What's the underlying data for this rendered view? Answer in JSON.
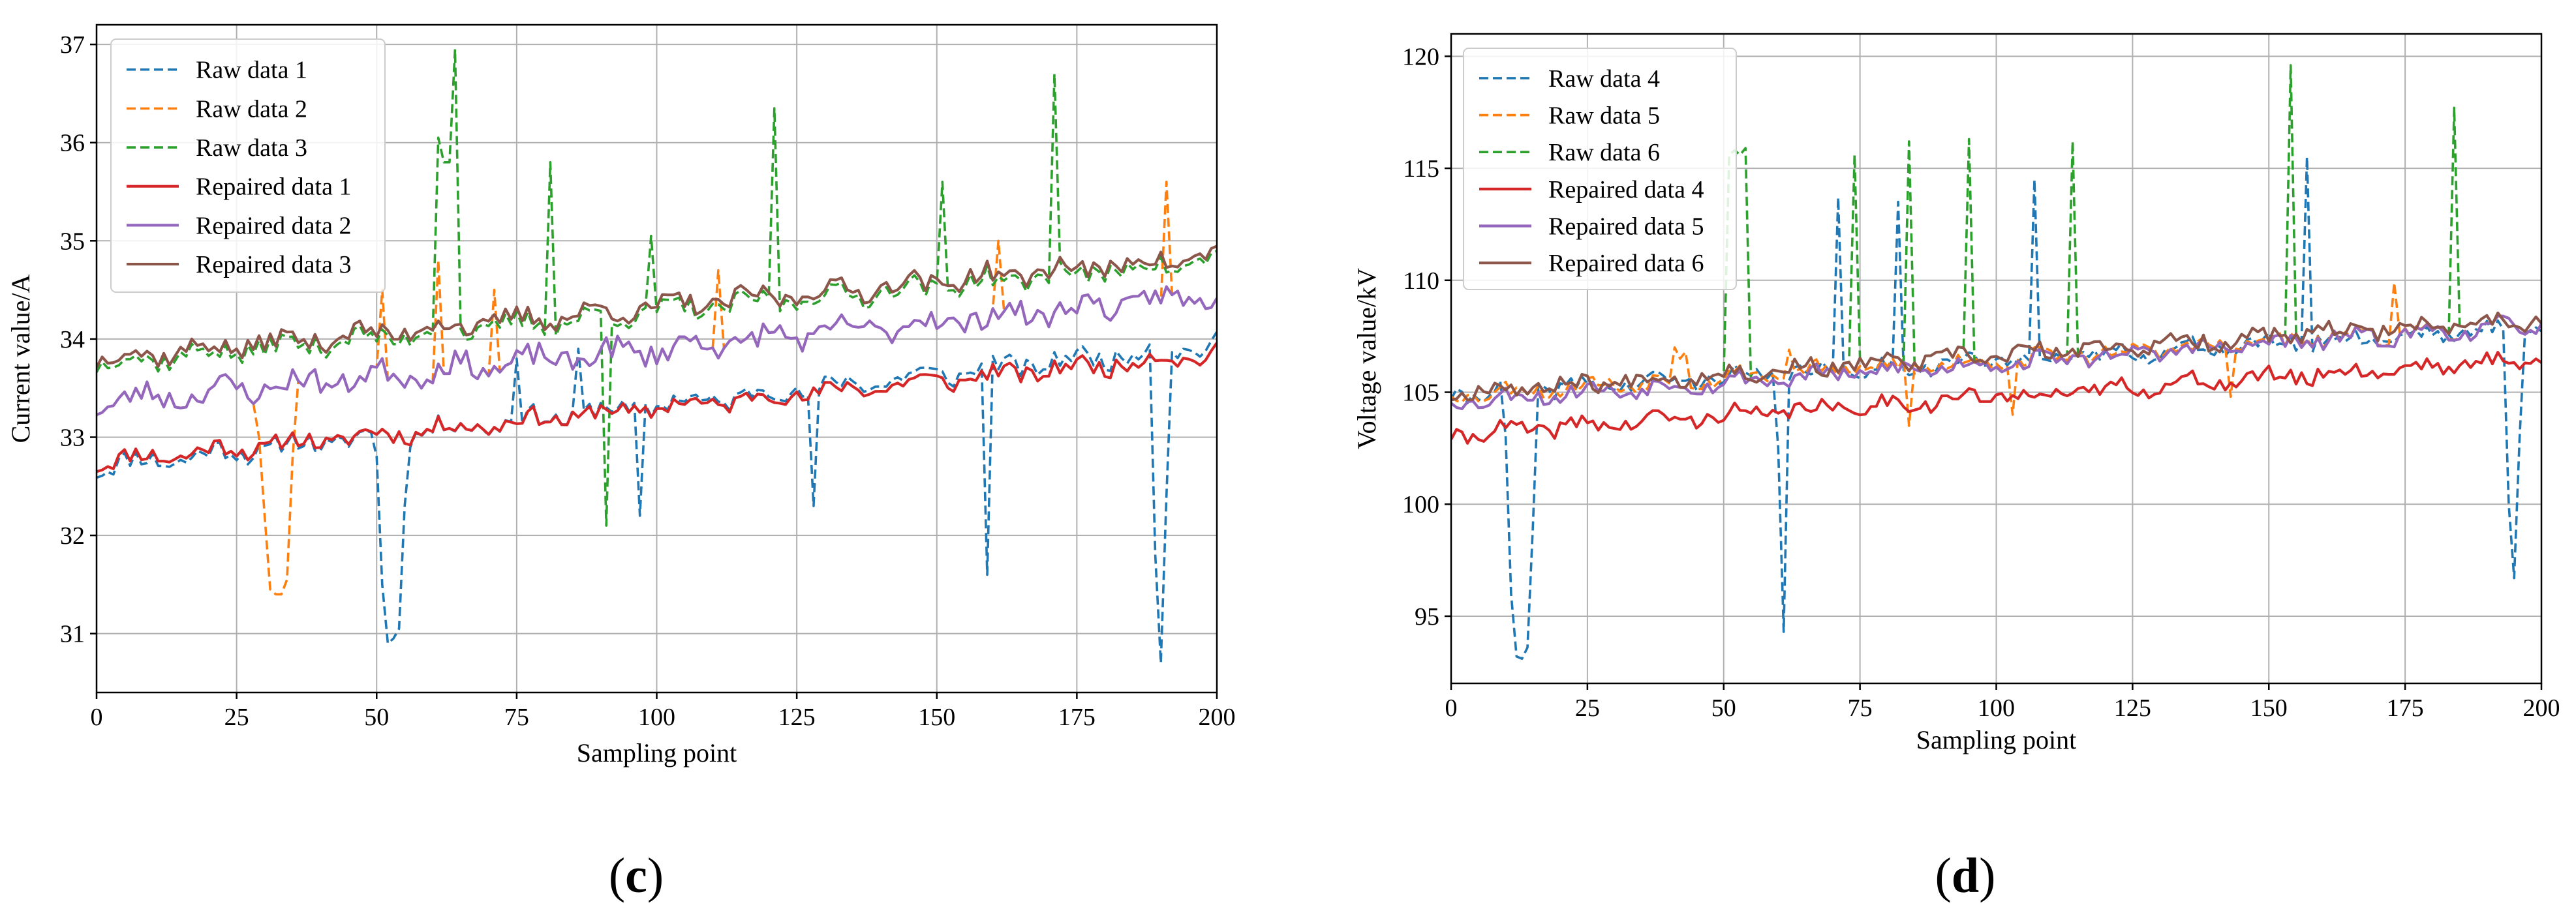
{
  "colors": {
    "raw_a": "#1f77b4",
    "raw_b": "#ff7f0e",
    "raw_c": "#2ca02c",
    "rep_a": "#d62728",
    "rep_b": "#9467bd",
    "rep_c": "#8c564b",
    "grid": "#b0b0b0",
    "axis": "#000000"
  },
  "chart_data": [
    {
      "type": "line",
      "panel_label": "c",
      "xlabel": "Sampling point",
      "ylabel": "Current value/A",
      "xlim": [
        0,
        200
      ],
      "ylim": [
        30.4,
        37.2
      ],
      "xticks": [
        0,
        25,
        50,
        75,
        100,
        125,
        150,
        175,
        200
      ],
      "yticks": [
        31,
        32,
        33,
        34,
        35,
        36,
        37
      ],
      "grid": true,
      "legend_position": "upper-left",
      "series": [
        {
          "name": "Raw data 1",
          "style": "dashed",
          "color_key": "raw_a",
          "base": [
            32.7,
            33.95
          ],
          "noise": 0.1,
          "seed": 11,
          "spikes": [
            [
              50,
              32.8
            ],
            [
              51,
              31.5
            ],
            [
              52,
              30.9
            ],
            [
              53,
              30.95
            ],
            [
              54,
              31.05
            ],
            [
              55,
              32.3
            ],
            [
              75,
              33.8
            ],
            [
              86,
              33.9
            ],
            [
              97,
              32.2
            ],
            [
              128,
              32.3
            ],
            [
              159,
              31.6
            ],
            [
              189,
              31.8
            ],
            [
              190,
              30.7
            ],
            [
              191,
              32.4
            ]
          ]
        },
        {
          "name": "Raw data 2",
          "style": "dashed",
          "color_key": "raw_b",
          "base": [
            33.35,
            34.45
          ],
          "noise": 0.12,
          "seed": 23,
          "spikes": [
            [
              29,
              33.0
            ],
            [
              30,
              32.2
            ],
            [
              31,
              31.45
            ],
            [
              32,
              31.4
            ],
            [
              33,
              31.4
            ],
            [
              34,
              31.55
            ],
            [
              35,
              32.8
            ],
            [
              51,
              34.5
            ],
            [
              61,
              34.8
            ],
            [
              71,
              34.5
            ],
            [
              111,
              34.7
            ],
            [
              161,
              35.0
            ],
            [
              191,
              35.6
            ]
          ]
        },
        {
          "name": "Raw data 3",
          "style": "dashed",
          "color_key": "raw_c",
          "base": [
            33.75,
            34.8
          ],
          "noise": 0.1,
          "seed": 37,
          "spikes": [
            [
              61,
              36.05
            ],
            [
              62,
              35.8
            ],
            [
              63,
              35.8
            ],
            [
              64,
              36.95
            ],
            [
              81,
              35.8
            ],
            [
              91,
              32.1
            ],
            [
              99,
              35.05
            ],
            [
              121,
              36.35
            ],
            [
              151,
              35.6
            ],
            [
              171,
              36.7
            ]
          ]
        },
        {
          "name": "Repaired data 1",
          "style": "solid",
          "color_key": "rep_a",
          "base": [
            32.75,
            33.85
          ],
          "noise": 0.09,
          "seed": 11,
          "spikes": []
        },
        {
          "name": "Repaired data 2",
          "style": "solid",
          "color_key": "rep_b",
          "base": [
            33.35,
            34.45
          ],
          "noise": 0.12,
          "seed": 23,
          "spikes": []
        },
        {
          "name": "Repaired data 3",
          "style": "solid",
          "color_key": "rep_c",
          "base": [
            33.8,
            34.85
          ],
          "noise": 0.1,
          "seed": 37,
          "spikes": []
        }
      ]
    },
    {
      "type": "line",
      "panel_label": "d",
      "xlabel": "Sampling point",
      "ylabel": "Voltage value/kV",
      "xlim": [
        0,
        200
      ],
      "ylim": [
        92.0,
        121.0
      ],
      "xticks": [
        0,
        25,
        50,
        75,
        100,
        125,
        150,
        175,
        200
      ],
      "yticks": [
        95,
        100,
        105,
        110,
        115,
        120
      ],
      "grid": true,
      "legend_position": "upper-left",
      "series": [
        {
          "name": "Raw data 4",
          "style": "dashed",
          "color_key": "raw_a",
          "base": [
            104.9,
            107.9
          ],
          "noise": 0.35,
          "seed": 41,
          "spikes": [
            [
              10,
              103.0
            ],
            [
              11,
              96.0
            ],
            [
              12,
              93.2
            ],
            [
              13,
              93.1
            ],
            [
              14,
              93.6
            ],
            [
              15,
              99.0
            ],
            [
              60,
              102.5
            ],
            [
              61,
              94.3
            ],
            [
              71,
              113.7
            ],
            [
              82,
              113.5
            ],
            [
              107,
              114.5
            ],
            [
              157,
              115.5
            ],
            [
              194,
              100.0
            ],
            [
              195,
              96.7
            ],
            [
              196,
              103.0
            ]
          ]
        },
        {
          "name": "Raw data 5",
          "style": "dashed",
          "color_key": "raw_b",
          "base": [
            104.9,
            108.0
          ],
          "noise": 0.35,
          "seed": 53,
          "spikes": [
            [
              41,
              107.0
            ],
            [
              42,
              106.5
            ],
            [
              43,
              106.8
            ],
            [
              62,
              106.9
            ],
            [
              84,
              103.5
            ],
            [
              103,
              104.0
            ],
            [
              143,
              104.8
            ],
            [
              173,
              109.9
            ]
          ]
        },
        {
          "name": "Raw data 6",
          "style": "dashed",
          "color_key": "raw_c",
          "base": [
            105.0,
            108.3
          ],
          "noise": 0.35,
          "seed": 67,
          "spikes": [
            [
              51,
              115.6
            ],
            [
              52,
              115.8
            ],
            [
              53,
              115.6
            ],
            [
              54,
              115.9
            ],
            [
              74,
              115.6
            ],
            [
              84,
              116.2
            ],
            [
              95,
              116.3
            ],
            [
              114,
              116.2
            ],
            [
              154,
              119.6
            ],
            [
              184,
              117.7
            ]
          ]
        },
        {
          "name": "Repaired data 4",
          "style": "solid",
          "color_key": "rep_a",
          "base": [
            103.1,
            106.5
          ],
          "noise": 0.35,
          "seed": 41,
          "spikes": []
        },
        {
          "name": "Repaired data 5",
          "style": "solid",
          "color_key": "rep_b",
          "base": [
            104.6,
            108.0
          ],
          "noise": 0.35,
          "seed": 53,
          "spikes": []
        },
        {
          "name": "Repaired data 6",
          "style": "solid",
          "color_key": "rep_c",
          "base": [
            105.0,
            108.3
          ],
          "noise": 0.35,
          "seed": 67,
          "spikes": []
        }
      ]
    }
  ]
}
